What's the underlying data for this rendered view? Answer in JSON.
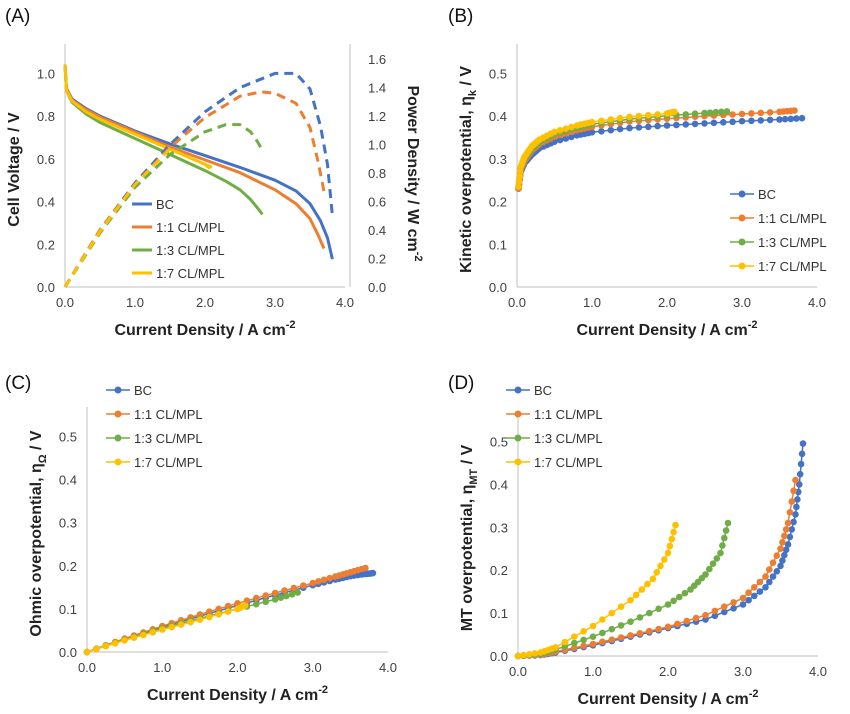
{
  "colors": {
    "BC": "#4472c4",
    "1:1 CL/MPL": "#ed7d31",
    "1:3 CL/MPL": "#70ad47",
    "1:7 CL/MPL": "#ffc000"
  },
  "chart_data": [
    {
      "panel": "(A)",
      "type": "line",
      "xlabel": "Current Density / A cm",
      "xlabel_sup": "-2",
      "ylabel": "Cell Voltage / V",
      "y2label": "Power Density / W cm",
      "y2label_sup": "-2",
      "xlim": [
        0,
        4.0
      ],
      "ylim": [
        0,
        1.1
      ],
      "y2lim": [
        0,
        1.65
      ],
      "xticks": [
        "0.0",
        "1.0",
        "2.0",
        "3.0",
        "4.0"
      ],
      "yticks": [
        "0.0",
        "0.2",
        "0.4",
        "0.6",
        "0.8",
        "1.0"
      ],
      "y2ticks": [
        "0.0",
        "0.2",
        "0.4",
        "0.6",
        "0.8",
        "1.0",
        "1.2",
        "1.4",
        "1.6"
      ],
      "legend": [
        "BC",
        "1:1 CL/MPL",
        "1:3 CL/MPL",
        "1:7 CL/MPL"
      ],
      "legend_position": "bottom-left",
      "series": [
        {
          "name": "BC",
          "axis": "left",
          "style": "solid",
          "x": [
            0,
            0.02,
            0.1,
            0.3,
            0.5,
            1.0,
            1.5,
            2.0,
            2.5,
            3.0,
            3.3,
            3.5,
            3.65,
            3.75,
            3.82
          ],
          "y": [
            1.04,
            0.93,
            0.88,
            0.835,
            0.8,
            0.73,
            0.67,
            0.615,
            0.56,
            0.5,
            0.45,
            0.39,
            0.31,
            0.23,
            0.13
          ]
        },
        {
          "name": "1:1 CL/MPL",
          "axis": "left",
          "style": "solid",
          "x": [
            0,
            0.02,
            0.1,
            0.3,
            0.5,
            1.0,
            1.5,
            2.0,
            2.5,
            3.0,
            3.3,
            3.5,
            3.62,
            3.7
          ],
          "y": [
            1.04,
            0.93,
            0.875,
            0.83,
            0.795,
            0.725,
            0.655,
            0.595,
            0.535,
            0.455,
            0.39,
            0.32,
            0.24,
            0.18
          ]
        },
        {
          "name": "1:3 CL/MPL",
          "axis": "left",
          "style": "solid",
          "x": [
            0,
            0.02,
            0.1,
            0.3,
            0.5,
            1.0,
            1.5,
            2.0,
            2.3,
            2.5,
            2.65,
            2.75,
            2.82
          ],
          "y": [
            1.04,
            0.92,
            0.865,
            0.81,
            0.77,
            0.695,
            0.62,
            0.545,
            0.495,
            0.455,
            0.41,
            0.37,
            0.34
          ]
        },
        {
          "name": "1:7 CL/MPL",
          "axis": "left",
          "style": "solid",
          "x": [
            0,
            0.02,
            0.1,
            0.3,
            0.5,
            1.0,
            1.5,
            2.0,
            2.1
          ],
          "y": [
            1.04,
            0.92,
            0.87,
            0.82,
            0.785,
            0.715,
            0.645,
            0.575,
            0.56
          ]
        },
        {
          "name": "BC",
          "axis": "right",
          "style": "dashed",
          "x": [
            0,
            0.5,
            1.0,
            1.5,
            2.0,
            2.5,
            3.0,
            3.3,
            3.5,
            3.65,
            3.75,
            3.82
          ],
          "y": [
            0,
            0.4,
            0.73,
            1.0,
            1.23,
            1.4,
            1.5,
            1.5,
            1.39,
            1.13,
            0.86,
            0.5
          ]
        },
        {
          "name": "1:1 CL/MPL",
          "axis": "right",
          "style": "dashed",
          "x": [
            0,
            0.5,
            1.0,
            1.5,
            2.0,
            2.5,
            2.8,
            3.0,
            3.3,
            3.5,
            3.62,
            3.7
          ],
          "y": [
            0,
            0.4,
            0.72,
            0.98,
            1.19,
            1.34,
            1.37,
            1.36,
            1.29,
            1.12,
            0.87,
            0.67
          ]
        },
        {
          "name": "1:3 CL/MPL",
          "axis": "right",
          "style": "dashed",
          "x": [
            0,
            0.5,
            1.0,
            1.5,
            2.0,
            2.3,
            2.5,
            2.65,
            2.75,
            2.82
          ],
          "y": [
            0,
            0.38,
            0.7,
            0.93,
            1.09,
            1.14,
            1.14,
            1.09,
            1.02,
            0.96
          ]
        },
        {
          "name": "1:7 CL/MPL",
          "axis": "right",
          "style": "dashed",
          "x": [
            0,
            0.5,
            1.0,
            1.5,
            2.0,
            2.1
          ],
          "y": [
            0,
            0.39,
            0.72,
            0.97,
            0.86,
            0.82
          ]
        }
      ]
    },
    {
      "panel": "(B)",
      "type": "scatter",
      "xlabel": "Current Density / A cm",
      "xlabel_sup": "-2",
      "ylabel": "Kinetic overpotential, η",
      "ylabel_sub": "k",
      "ylabel_tail": " / V",
      "xlim": [
        0,
        4.0
      ],
      "ylim": [
        0,
        0.55
      ],
      "xticks": [
        "0.0",
        "1.0",
        "2.0",
        "3.0",
        "4.0"
      ],
      "yticks": [
        "0.0",
        "0.1",
        "0.2",
        "0.3",
        "0.4",
        "0.5"
      ],
      "legend": [
        "BC",
        "1:1 CL/MPL",
        "1:3 CL/MPL",
        "1:7 CL/MPL"
      ],
      "legend_position": "bottom-right",
      "series": [
        {
          "name": "BC",
          "x": [
            0.02,
            0.05,
            0.1,
            0.2,
            0.3,
            0.5,
            0.8,
            1.0,
            1.5,
            2.0,
            2.5,
            3.0,
            3.5,
            3.8
          ],
          "y": [
            0.23,
            0.27,
            0.29,
            0.31,
            0.325,
            0.34,
            0.355,
            0.362,
            0.372,
            0.378,
            0.383,
            0.388,
            0.392,
            0.395
          ]
        },
        {
          "name": "1:1 CL/MPL",
          "x": [
            0.02,
            0.05,
            0.1,
            0.2,
            0.3,
            0.5,
            0.8,
            1.0,
            1.5,
            2.0,
            2.5,
            3.0,
            3.5,
            3.7
          ],
          "y": [
            0.23,
            0.275,
            0.295,
            0.32,
            0.335,
            0.352,
            0.367,
            0.375,
            0.387,
            0.394,
            0.4,
            0.405,
            0.41,
            0.413
          ]
        },
        {
          "name": "1:3 CL/MPL",
          "x": [
            0.02,
            0.05,
            0.1,
            0.2,
            0.3,
            0.5,
            0.8,
            1.0,
            1.5,
            2.0,
            2.5,
            2.8
          ],
          "y": [
            0.235,
            0.28,
            0.3,
            0.325,
            0.34,
            0.358,
            0.373,
            0.381,
            0.393,
            0.401,
            0.407,
            0.411
          ]
        },
        {
          "name": "1:7 CL/MPL",
          "x": [
            0.02,
            0.05,
            0.1,
            0.2,
            0.3,
            0.5,
            0.8,
            1.0,
            1.5,
            2.0,
            2.1
          ],
          "y": [
            0.235,
            0.282,
            0.305,
            0.33,
            0.345,
            0.363,
            0.378,
            0.386,
            0.398,
            0.406,
            0.41
          ]
        }
      ]
    },
    {
      "panel": "(C)",
      "type": "scatter",
      "xlabel": "Current Density / A cm",
      "xlabel_sup": "-2",
      "ylabel": "Ohmic overpotential, η",
      "ylabel_sub": "Ω",
      "ylabel_tail": " / V",
      "xlim": [
        0,
        4.0
      ],
      "ylim": [
        0,
        0.55
      ],
      "xticks": [
        "0.0",
        "1.0",
        "2.0",
        "3.0",
        "4.0"
      ],
      "yticks": [
        "0.0",
        "0.1",
        "0.2",
        "0.3",
        "0.4",
        "0.5"
      ],
      "legend": [
        "BC",
        "1:1 CL/MPL",
        "1:3 CL/MPL",
        "1:7 CL/MPL"
      ],
      "legend_position": "top-left",
      "series": [
        {
          "name": "BC",
          "x": [
            0,
            0.5,
            1.0,
            1.5,
            2.0,
            2.5,
            3.0,
            3.3,
            3.5,
            3.7,
            3.8
          ],
          "y": [
            0,
            0.03,
            0.058,
            0.083,
            0.108,
            0.132,
            0.155,
            0.168,
            0.176,
            0.181,
            0.183
          ]
        },
        {
          "name": "1:1 CL/MPL",
          "x": [
            0,
            0.5,
            1.0,
            1.5,
            2.0,
            2.5,
            3.0,
            3.3,
            3.5,
            3.7
          ],
          "y": [
            0,
            0.031,
            0.06,
            0.087,
            0.113,
            0.137,
            0.16,
            0.175,
            0.185,
            0.195
          ]
        },
        {
          "name": "1:3 CL/MPL",
          "x": [
            0,
            0.5,
            1.0,
            1.5,
            2.0,
            2.5,
            2.8
          ],
          "y": [
            0,
            0.028,
            0.055,
            0.078,
            0.1,
            0.122,
            0.138
          ]
        },
        {
          "name": "1:7 CL/MPL",
          "x": [
            0,
            0.5,
            1.0,
            1.5,
            2.0,
            2.1
          ],
          "y": [
            0,
            0.027,
            0.052,
            0.075,
            0.1,
            0.108
          ]
        }
      ]
    },
    {
      "panel": "(D)",
      "type": "scatter",
      "xlabel": "Current Density / A cm",
      "xlabel_sup": "-2",
      "ylabel": "MT overpotential, η",
      "ylabel_sub": "MT",
      "ylabel_tail": " / V",
      "xlim": [
        0,
        4.0
      ],
      "ylim": [
        0,
        0.55
      ],
      "xticks": [
        "0.0",
        "1.0",
        "2.0",
        "3.0",
        "4.0"
      ],
      "yticks": [
        "0.0",
        "0.1",
        "0.2",
        "0.3",
        "0.4",
        "0.5"
      ],
      "legend": [
        "BC",
        "1:1 CL/MPL",
        "1:3 CL/MPL",
        "1:7 CL/MPL"
      ],
      "legend_position": "top-left",
      "series": [
        {
          "name": "BC",
          "x": [
            0,
            0.3,
            0.5,
            1.0,
            1.5,
            2.0,
            2.5,
            3.0,
            3.3,
            3.5,
            3.6,
            3.7,
            3.75,
            3.8
          ],
          "y": [
            0,
            0.002,
            0.008,
            0.025,
            0.045,
            0.065,
            0.085,
            0.12,
            0.16,
            0.21,
            0.26,
            0.33,
            0.4,
            0.495
          ]
        },
        {
          "name": "1:1 CL/MPL",
          "x": [
            0,
            0.3,
            0.5,
            1.0,
            1.5,
            2.0,
            2.5,
            3.0,
            3.3,
            3.5,
            3.6,
            3.7
          ],
          "y": [
            0,
            0.003,
            0.01,
            0.028,
            0.048,
            0.068,
            0.095,
            0.135,
            0.185,
            0.25,
            0.31,
            0.41
          ]
        },
        {
          "name": "1:3 CL/MPL",
          "x": [
            0,
            0.3,
            0.5,
            1.0,
            1.5,
            2.0,
            2.3,
            2.5,
            2.7,
            2.8
          ],
          "y": [
            0,
            0.005,
            0.015,
            0.045,
            0.08,
            0.12,
            0.155,
            0.19,
            0.24,
            0.31
          ]
        },
        {
          "name": "1:7 CL/MPL",
          "x": [
            0,
            0.3,
            0.5,
            1.0,
            1.5,
            1.8,
            2.0,
            2.1
          ],
          "y": [
            0,
            0.008,
            0.02,
            0.07,
            0.13,
            0.18,
            0.24,
            0.305
          ]
        }
      ]
    }
  ]
}
